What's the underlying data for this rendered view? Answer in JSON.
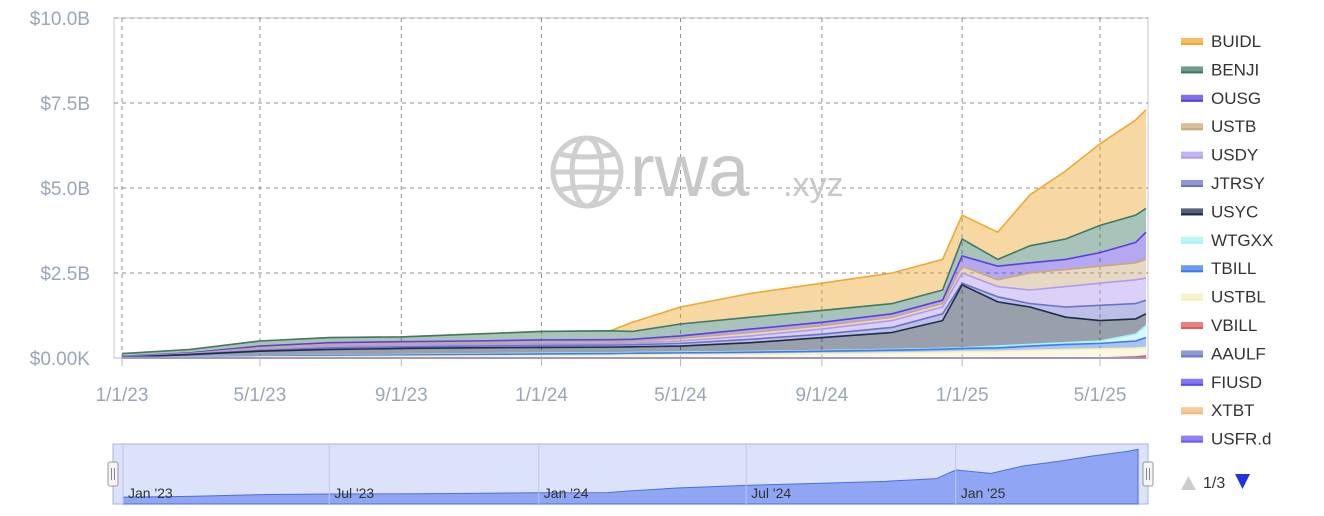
{
  "watermark": {
    "main": "rwa",
    "suffix": ".xyz"
  },
  "legend_pager": {
    "text": "1/3"
  },
  "navigator": {
    "labels": [
      "Jan '23",
      "Jul '23",
      "Jan '24",
      "Jul '24",
      "Jan '25"
    ]
  },
  "chart_data": {
    "type": "area",
    "stacked": true,
    "x_unit": "date",
    "x_range": [
      "2023-01-01",
      "2025-06-10"
    ],
    "y_range": [
      0,
      10000000000
    ],
    "x_ticks": [
      {
        "date": "2023-01-01",
        "label": "1/1/23"
      },
      {
        "date": "2023-05-01",
        "label": "5/1/23"
      },
      {
        "date": "2023-09-01",
        "label": "9/1/23"
      },
      {
        "date": "2024-01-01",
        "label": "1/1/24"
      },
      {
        "date": "2024-05-01",
        "label": "5/1/24"
      },
      {
        "date": "2024-09-01",
        "label": "9/1/24"
      },
      {
        "date": "2025-01-01",
        "label": "1/1/25"
      },
      {
        "date": "2025-05-01",
        "label": "5/1/25"
      }
    ],
    "y_ticks": [
      {
        "value": 0,
        "label": "$0.00K"
      },
      {
        "value": 2500000000,
        "label": "$2.5B"
      },
      {
        "value": 5000000000,
        "label": "$5.0B"
      },
      {
        "value": 7500000000,
        "label": "$7.5B"
      },
      {
        "value": 10000000000,
        "label": "$10.0B"
      }
    ],
    "grid": true,
    "legend_position": "right",
    "dates": [
      "2023-01-01",
      "2023-03-01",
      "2023-05-01",
      "2023-07-01",
      "2023-09-01",
      "2023-11-01",
      "2024-01-01",
      "2024-03-01",
      "2024-03-20",
      "2024-05-01",
      "2024-07-01",
      "2024-09-01",
      "2024-11-01",
      "2024-12-15",
      "2025-01-01",
      "2025-02-01",
      "2025-03-01",
      "2025-04-01",
      "2025-05-01",
      "2025-06-01",
      "2025-06-10"
    ],
    "cumulative_totals": [
      {
        "name": "BUIDL",
        "values": [
          130000000,
          250000000,
          500000000,
          600000000,
          620000000,
          700000000,
          780000000,
          800000000,
          1050000000,
          1500000000,
          1900000000,
          2200000000,
          2500000000,
          2900000000,
          4200000000,
          3700000000,
          4800000000,
          5500000000,
          6300000000,
          7000000000,
          7300000000
        ]
      },
      {
        "name": "BENJI",
        "values": [
          130000000,
          250000000,
          500000000,
          600000000,
          620000000,
          700000000,
          780000000,
          800000000,
          780000000,
          1000000000,
          1200000000,
          1400000000,
          1600000000,
          2000000000,
          3500000000,
          2900000000,
          3300000000,
          3500000000,
          3900000000,
          4200000000,
          4400000000
        ]
      },
      {
        "name": "OUSG",
        "values": [
          50000000,
          150000000,
          350000000,
          450000000,
          480000000,
          500000000,
          530000000,
          540000000,
          550000000,
          650000000,
          850000000,
          1050000000,
          1300000000,
          1700000000,
          3000000000,
          2700000000,
          2800000000,
          2900000000,
          3100000000,
          3400000000,
          3700000000
        ]
      },
      {
        "name": "USTB",
        "values": [
          40000000,
          130000000,
          300000000,
          400000000,
          420000000,
          440000000,
          470000000,
          480000000,
          490000000,
          580000000,
          750000000,
          950000000,
          1200000000,
          1600000000,
          2700000000,
          2300000000,
          2500000000,
          2600000000,
          2700000000,
          2800000000,
          2900000000
        ]
      },
      {
        "name": "USDY",
        "values": [
          30000000,
          120000000,
          250000000,
          350000000,
          380000000,
          400000000,
          420000000,
          430000000,
          440000000,
          500000000,
          650000000,
          850000000,
          1100000000,
          1500000000,
          2500000000,
          2100000000,
          2000000000,
          2100000000,
          2200000000,
          2300000000,
          2350000000
        ]
      },
      {
        "name": "JTRSY",
        "values": [
          30000000,
          110000000,
          220000000,
          300000000,
          330000000,
          350000000,
          370000000,
          380000000,
          390000000,
          430000000,
          550000000,
          700000000,
          900000000,
          1300000000,
          2200000000,
          1800000000,
          1600000000,
          1500000000,
          1550000000,
          1600000000,
          1700000000
        ]
      },
      {
        "name": "USYC",
        "values": [
          20000000,
          100000000,
          200000000,
          250000000,
          280000000,
          300000000,
          310000000,
          320000000,
          330000000,
          350000000,
          450000000,
          600000000,
          750000000,
          1100000000,
          2150000000,
          1650000000,
          1500000000,
          1200000000,
          1100000000,
          1150000000,
          1300000000
        ]
      },
      {
        "name": "WTGXX",
        "values": [
          10000000,
          30000000,
          60000000,
          80000000,
          100000000,
          120000000,
          140000000,
          150000000,
          160000000,
          170000000,
          190000000,
          220000000,
          250000000,
          280000000,
          300000000,
          350000000,
          400000000,
          450000000,
          500000000,
          700000000,
          950000000
        ]
      },
      {
        "name": "TBILL",
        "values": [
          10000000,
          25000000,
          50000000,
          70000000,
          85000000,
          100000000,
          120000000,
          130000000,
          140000000,
          150000000,
          170000000,
          200000000,
          230000000,
          260000000,
          280000000,
          300000000,
          350000000,
          400000000,
          430000000,
          500000000,
          600000000
        ]
      },
      {
        "name": "USTBL",
        "values": [
          5000000,
          15000000,
          30000000,
          40000000,
          50000000,
          60000000,
          70000000,
          80000000,
          90000000,
          100000000,
          110000000,
          130000000,
          150000000,
          170000000,
          190000000,
          200000000,
          230000000,
          250000000,
          270000000,
          290000000,
          310000000
        ]
      },
      {
        "name": "VBILL",
        "values": [
          0,
          0,
          0,
          0,
          0,
          0,
          0,
          0,
          0,
          0,
          0,
          0,
          0,
          0,
          0,
          0,
          0,
          0,
          0,
          30000000,
          60000000
        ]
      },
      {
        "name": "AAULF",
        "values": [
          0,
          0,
          0,
          0,
          0,
          0,
          0,
          0,
          0,
          0,
          0,
          0,
          0,
          0,
          0,
          0,
          0,
          0,
          0,
          0,
          0
        ]
      },
      {
        "name": "FIUSD",
        "values": [
          0,
          0,
          0,
          0,
          0,
          0,
          0,
          0,
          0,
          0,
          0,
          0,
          0,
          0,
          0,
          0,
          0,
          0,
          0,
          0,
          0
        ]
      },
      {
        "name": "XTBT",
        "values": [
          0,
          0,
          0,
          0,
          0,
          0,
          0,
          0,
          0,
          0,
          0,
          0,
          0,
          0,
          0,
          0,
          0,
          0,
          0,
          0,
          0
        ]
      },
      {
        "name": "USFR.d",
        "values": [
          0,
          0,
          0,
          0,
          0,
          0,
          0,
          0,
          0,
          0,
          0,
          0,
          0,
          0,
          0,
          0,
          0,
          0,
          0,
          0,
          0
        ]
      }
    ],
    "series_colors": {
      "BUIDL": "#f0a830",
      "BENJI": "#3d7a66",
      "OUSG": "#5b3fe0",
      "USTB": "#c9a97c",
      "USDY": "#b09af0",
      "JTRSY": "#6b72c8",
      "USYC": "#1c2d48",
      "WTGXX": "#a6f2f8",
      "TBILL": "#3b7af0",
      "USTBL": "#f6f0b8",
      "VBILL": "#e05a5a",
      "AAULF": "#6878c8",
      "FIUSD": "#5a4af0",
      "XTBT": "#f6b87a",
      "USFR.d": "#6a58f0"
    }
  }
}
